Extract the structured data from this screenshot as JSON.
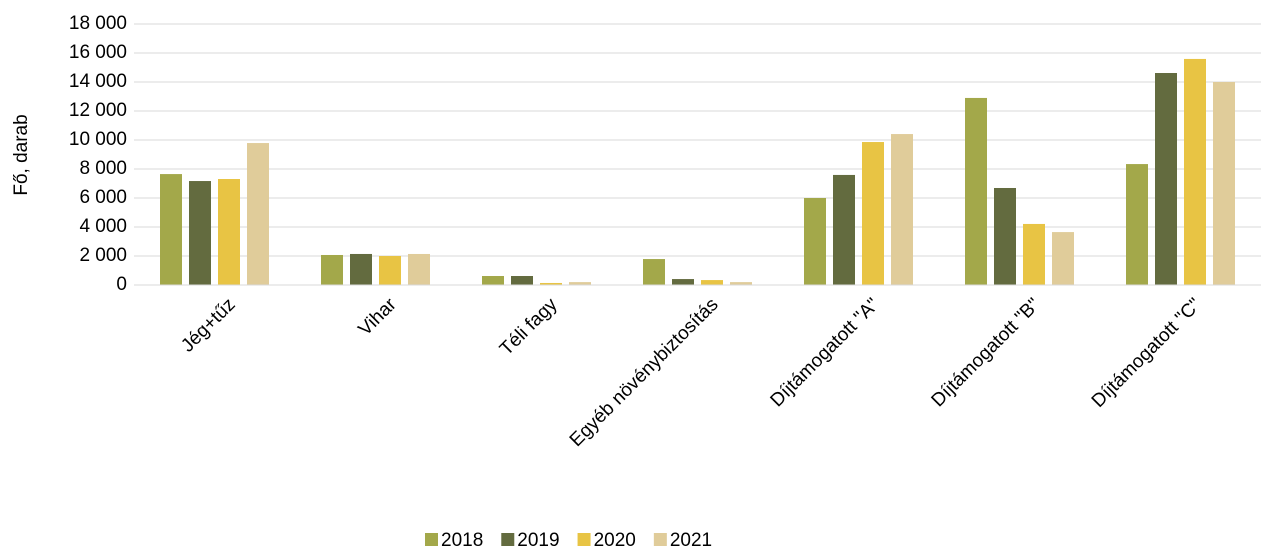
{
  "chart_data": {
    "type": "bar",
    "y_label": "Fő, darab",
    "categories": [
      "Jég+tűz",
      "Vihar",
      "Téli fagy",
      "Egyéb növénybiztosítás",
      "Díjtámogatott \"A\"",
      "Díjtámogatott \"B\"",
      "Díjtámogatott \"C\""
    ],
    "series": [
      {
        "name": "2018",
        "color": "#a3a84a",
        "values": [
          7650,
          2070,
          620,
          1790,
          6000,
          12900,
          8340
        ]
      },
      {
        "name": "2019",
        "color": "#636b3f",
        "values": [
          7170,
          2140,
          620,
          410,
          7590,
          6690,
          14620
        ]
      },
      {
        "name": "2020",
        "color": "#e8c444",
        "values": [
          7310,
          2000,
          140,
          340,
          9860,
          4210,
          15590
        ]
      },
      {
        "name": "2021",
        "color": "#e0cc9a",
        "values": [
          9790,
          2140,
          200,
          200,
          10410,
          3650,
          14000
        ]
      }
    ],
    "ylim": [
      0,
      18000
    ],
    "yticks": [
      0,
      {
        "value": 2000,
        "label": "2 000"
      },
      {
        "value": 4000,
        "label": "4 000"
      },
      {
        "value": 6000,
        "label": "6 000"
      },
      {
        "value": 8000,
        "label": "8 000"
      },
      {
        "value": 10000,
        "label": "10 000"
      },
      {
        "value": 12000,
        "label": "12 000"
      },
      {
        "value": 14000,
        "label": "14 000"
      },
      {
        "value": 16000,
        "label": "16 000"
      },
      {
        "value": 18000,
        "label": "18 000"
      }
    ],
    "grid": true,
    "legend": "bottom"
  }
}
